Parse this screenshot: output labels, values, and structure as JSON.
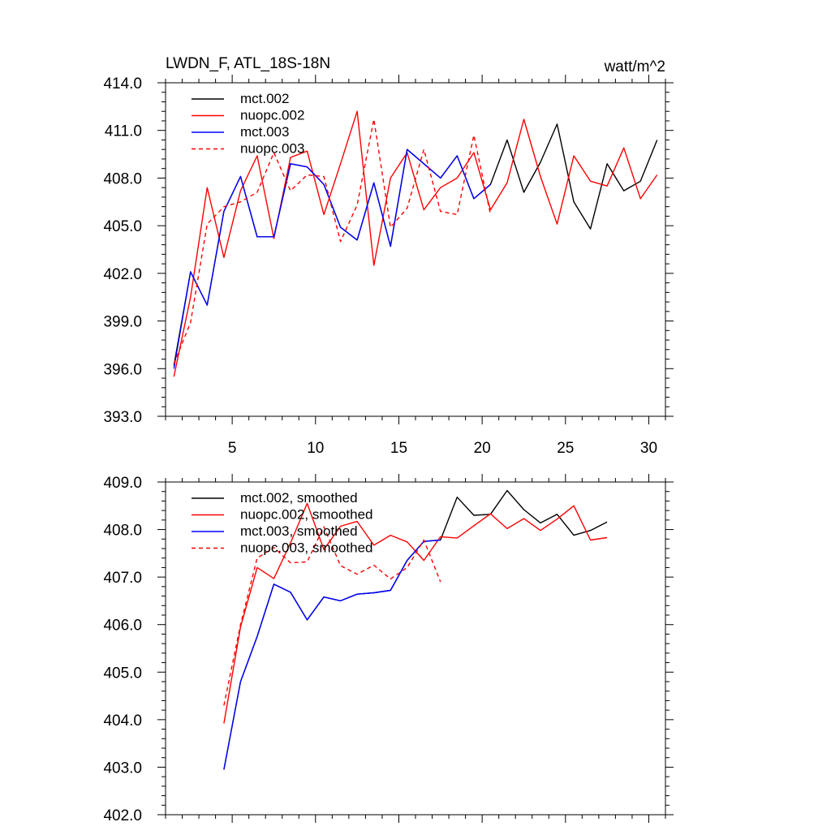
{
  "chart_data": [
    {
      "type": "line",
      "title": "LWDN_F, ATL_18S-18N",
      "units": "watt/m^2",
      "xlim": [
        1,
        31
      ],
      "ylim": [
        393.0,
        414.0
      ],
      "x_ticks": [
        5,
        10,
        15,
        20,
        25,
        30
      ],
      "x_tick_labels": [
        "5",
        "10",
        "15",
        "20",
        "25",
        "30"
      ],
      "y_ticks": [
        393.0,
        396.0,
        399.0,
        402.0,
        405.0,
        408.0,
        411.0,
        414.0
      ],
      "y_tick_labels": [
        "393.0",
        "396.0",
        "399.0",
        "402.0",
        "405.0",
        "408.0",
        "411.0",
        "414.0"
      ],
      "legend_position": "top-left",
      "series": [
        {
          "name": "mct.002",
          "color": "#000000",
          "dash": "solid",
          "x": [
            1.5,
            2.5,
            3.5,
            4.5,
            5.5,
            6.5,
            7.5,
            8.5,
            9.5,
            10.5,
            11.5,
            12.5,
            13.5,
            14.5,
            15.5,
            16.5,
            17.5,
            18.5,
            19.5,
            20.5,
            21.5,
            22.5,
            23.5,
            24.5,
            25.5,
            26.5,
            27.5,
            28.5,
            29.5,
            30.5
          ],
          "values": [
            396.2,
            402.1,
            400.0,
            405.9,
            408.1,
            404.3,
            404.3,
            408.9,
            408.7,
            407.6,
            404.9,
            404.1,
            407.7,
            403.7,
            409.8,
            408.9,
            408.0,
            409.4,
            406.7,
            407.6,
            410.4,
            407.1,
            409.0,
            411.4,
            406.5,
            404.8,
            408.9,
            407.2,
            407.8,
            410.4
          ]
        },
        {
          "name": "nuopc.002",
          "color": "#ff0000",
          "dash": "solid",
          "x": [
            1.5,
            2.5,
            3.5,
            4.5,
            5.5,
            6.5,
            7.5,
            8.5,
            9.5,
            10.5,
            11.5,
            12.5,
            13.5,
            14.5,
            15.5,
            16.5,
            17.5,
            18.5,
            19.5,
            20.5,
            21.5,
            22.5,
            23.5,
            24.5,
            25.5,
            26.5,
            27.5,
            28.5,
            29.5,
            30.5
          ],
          "values": [
            395.5,
            400.5,
            407.4,
            403.0,
            407.2,
            409.4,
            404.2,
            409.3,
            409.7,
            405.7,
            408.9,
            412.2,
            402.5,
            408.0,
            409.6,
            406.0,
            407.4,
            408.0,
            409.6,
            406.0,
            407.7,
            411.7,
            408.1,
            405.1,
            409.4,
            407.8,
            407.5,
            409.9,
            406.7,
            408.2
          ]
        },
        {
          "name": "mct.003",
          "color": "#0000ff",
          "dash": "solid",
          "x": [
            1.5,
            2.5,
            3.5,
            4.5,
            5.5,
            6.5,
            7.5,
            8.5,
            9.5,
            10.5,
            11.5,
            12.5,
            13.5,
            14.5,
            15.5,
            16.5,
            17.5,
            18.5,
            19.5,
            20.5
          ],
          "values": [
            396.0,
            402.1,
            400.0,
            405.9,
            408.1,
            404.3,
            404.3,
            408.9,
            408.7,
            407.6,
            404.9,
            404.1,
            407.7,
            403.7,
            409.8,
            408.9,
            408.0,
            409.4,
            406.7,
            407.6
          ]
        },
        {
          "name": "nuopc.003",
          "color": "#ff0000",
          "dash": "dashed",
          "x": [
            1.5,
            2.5,
            3.5,
            4.5,
            5.5,
            6.5,
            7.5,
            8.5,
            9.5,
            10.5,
            11.5,
            12.5,
            13.5,
            14.5,
            15.5,
            16.5,
            17.5,
            18.5,
            19.5,
            20.5
          ],
          "values": [
            396.3,
            398.9,
            405.1,
            406.2,
            406.5,
            407.1,
            409.6,
            407.2,
            408.2,
            408.1,
            404.0,
            406.3,
            411.7,
            404.9,
            406.1,
            409.8,
            405.9,
            405.7,
            410.7,
            405.7
          ]
        }
      ]
    },
    {
      "type": "line",
      "xlim": [
        1,
        31
      ],
      "ylim": [
        402.0,
        409.0
      ],
      "x_ticks": [
        5,
        10,
        15,
        20,
        25,
        30
      ],
      "y_ticks": [
        402.0,
        403.0,
        404.0,
        405.0,
        406.0,
        407.0,
        408.0,
        409.0
      ],
      "y_tick_labels": [
        "402.0",
        "403.0",
        "404.0",
        "405.0",
        "406.0",
        "407.0",
        "408.0",
        "409.0"
      ],
      "legend_position": "top-left",
      "series": [
        {
          "name": "mct.002, smoothed",
          "color": "#000000",
          "dash": "solid",
          "x": [
            4.5,
            5.5,
            6.5,
            7.5,
            8.5,
            9.5,
            10.5,
            11.5,
            12.5,
            13.5,
            14.5,
            15.5,
            16.5,
            17.5,
            18.5,
            19.5,
            20.5,
            21.5,
            22.5,
            23.5,
            24.5,
            25.5,
            26.5,
            27.5
          ],
          "values": [
            402.95,
            404.8,
            405.75,
            406.85,
            406.68,
            406.1,
            406.58,
            406.5,
            406.64,
            406.67,
            406.72,
            407.35,
            407.75,
            407.78,
            408.68,
            408.3,
            408.32,
            408.82,
            408.42,
            408.14,
            408.32,
            407.88,
            407.98,
            408.16
          ]
        },
        {
          "name": "nuopc.002, smoothed",
          "color": "#ff0000",
          "dash": "solid",
          "x": [
            4.5,
            5.5,
            6.5,
            7.5,
            8.5,
            9.5,
            10.5,
            11.5,
            12.5,
            13.5,
            14.5,
            15.5,
            16.5,
            17.5,
            18.5,
            19.5,
            20.5,
            21.5,
            22.5,
            23.5,
            24.5,
            25.5,
            26.5,
            27.5
          ],
          "values": [
            403.92,
            405.95,
            407.2,
            406.97,
            407.72,
            408.55,
            407.58,
            408.07,
            408.17,
            407.67,
            407.88,
            407.74,
            407.35,
            407.85,
            407.82,
            408.08,
            408.33,
            408.02,
            408.23,
            407.98,
            408.22,
            408.5,
            407.78,
            407.83
          ]
        },
        {
          "name": "mct.003, smoothed",
          "color": "#0000ff",
          "dash": "solid",
          "x": [
            4.5,
            5.5,
            6.5,
            7.5,
            8.5,
            9.5,
            10.5,
            11.5,
            12.5,
            13.5,
            14.5,
            15.5,
            16.5,
            17.5
          ],
          "values": [
            402.95,
            404.8,
            405.75,
            406.85,
            406.68,
            406.1,
            406.58,
            406.5,
            406.64,
            406.67,
            406.72,
            407.35,
            407.75,
            407.78
          ]
        },
        {
          "name": "nuopc.003, smoothed",
          "color": "#ff0000",
          "dash": "dashed",
          "x": [
            4.5,
            5.5,
            6.5,
            7.5,
            8.5,
            9.5,
            10.5,
            11.5,
            12.5,
            13.5,
            14.5,
            15.5,
            16.5,
            17.5
          ],
          "values": [
            404.3,
            406.0,
            407.4,
            407.62,
            407.3,
            407.32,
            408.06,
            407.24,
            407.06,
            407.25,
            406.96,
            407.2,
            407.78,
            406.9
          ]
        }
      ]
    }
  ]
}
